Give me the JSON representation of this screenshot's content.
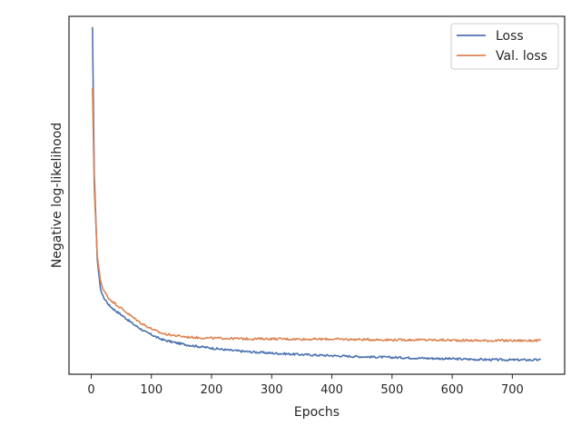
{
  "chart_data": {
    "type": "line",
    "xlabel": "Epochs",
    "ylabel": "Negative log-likelihood",
    "xlim": [
      -37,
      787
    ],
    "ylim": [
      0,
      1
    ],
    "xticks": [
      0,
      100,
      200,
      300,
      400,
      500,
      600,
      700
    ],
    "yticks_labeled": false,
    "grid": false,
    "legend": "top-right",
    "series": [
      {
        "name": "Loss",
        "color": "#4c72b0",
        "x": [
          2,
          5,
          10,
          15,
          20,
          30,
          40,
          50,
          60,
          70,
          80,
          90,
          100,
          110,
          120,
          140,
          160,
          180,
          200,
          230,
          260,
          300,
          350,
          400,
          450,
          500,
          550,
          600,
          650,
          700,
          747
        ],
        "y": [
          0.97,
          0.56,
          0.32,
          0.24,
          0.216,
          0.192,
          0.178,
          0.166,
          0.153,
          0.14,
          0.129,
          0.118,
          0.111,
          0.102,
          0.096,
          0.088,
          0.082,
          0.077,
          0.073,
          0.067,
          0.063,
          0.059,
          0.055,
          0.052,
          0.049,
          0.047,
          0.045,
          0.043,
          0.041,
          0.04,
          0.04
        ]
      },
      {
        "name": "Val. loss",
        "color": "#dd8452",
        "x": [
          2,
          5,
          10,
          15,
          20,
          30,
          40,
          50,
          60,
          70,
          80,
          90,
          100,
          110,
          120,
          140,
          160,
          180,
          200,
          230,
          260,
          300,
          350,
          400,
          450,
          500,
          550,
          600,
          650,
          700,
          747
        ],
        "y": [
          0.8,
          0.52,
          0.33,
          0.265,
          0.236,
          0.21,
          0.197,
          0.184,
          0.171,
          0.158,
          0.146,
          0.136,
          0.127,
          0.119,
          0.113,
          0.108,
          0.104,
          0.102,
          0.101,
          0.1,
          0.099,
          0.099,
          0.098,
          0.098,
          0.097,
          0.096,
          0.096,
          0.095,
          0.094,
          0.094,
          0.094
        ]
      }
    ]
  }
}
